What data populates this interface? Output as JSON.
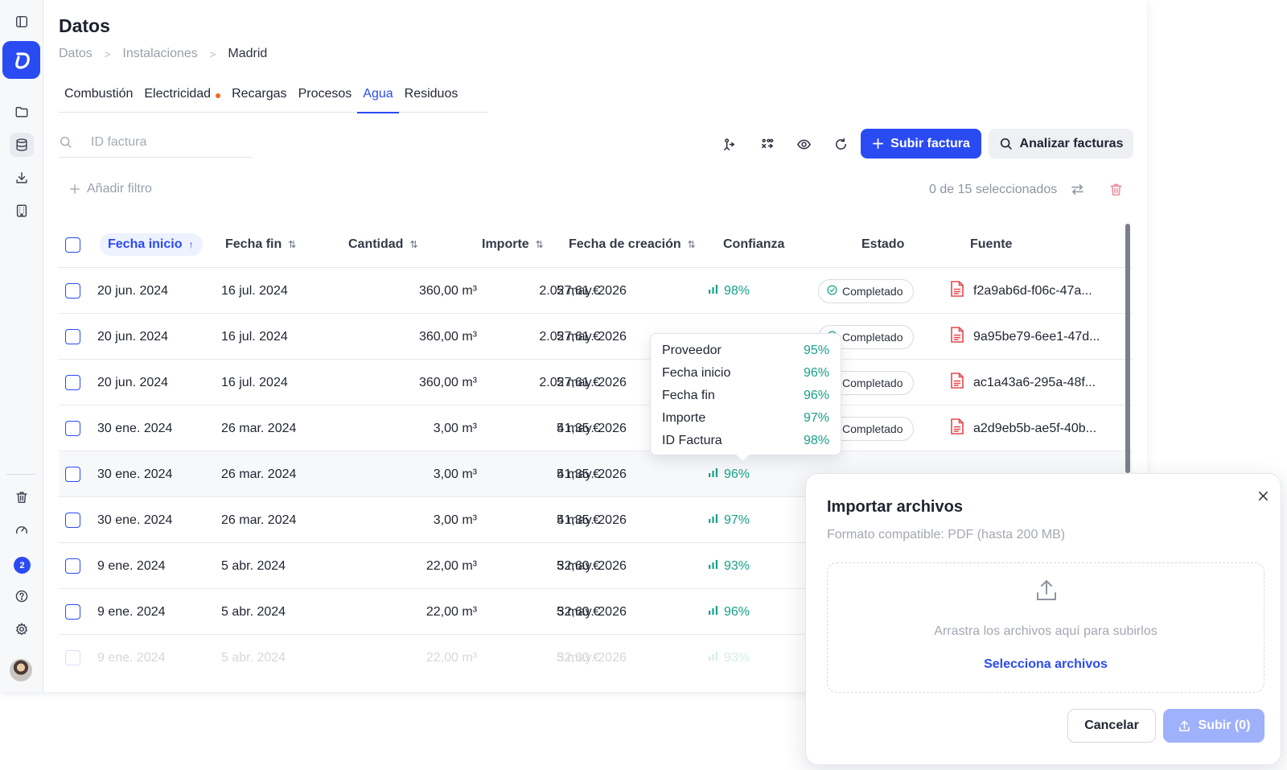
{
  "header": {
    "title": "Datos",
    "breadcrumb": [
      "Datos",
      "Instalaciones",
      "Madrid"
    ]
  },
  "tabs": [
    {
      "label": "Combustión",
      "active": false,
      "dot": false
    },
    {
      "label": "Electricidad",
      "active": false,
      "dot": true
    },
    {
      "label": "Recargas",
      "active": false,
      "dot": false
    },
    {
      "label": "Procesos",
      "active": false,
      "dot": false
    },
    {
      "label": "Agua",
      "active": true,
      "dot": false
    },
    {
      "label": "Residuos",
      "active": false,
      "dot": false
    }
  ],
  "toolbar": {
    "search_placeholder": "ID factura",
    "upload_label": "Subir factura",
    "analyze_label": "Analizar facturas",
    "add_filter_label": "Añadir filtro",
    "selection_text": "0 de 15 seleccionados"
  },
  "table": {
    "columns": [
      "Fecha inicio",
      "Fecha fin",
      "Cantidad",
      "Importe",
      "Fecha de creación",
      "Confianza",
      "Estado",
      "Fuente"
    ],
    "rows": [
      {
        "start": "20 jun. 2024",
        "end": "16 jul. 2024",
        "qty": "360,00 m³",
        "amount": "2.027,61 €",
        "created": "5 may. 2026",
        "conf": "98%",
        "status": "Completado",
        "source": "f2a9ab6d-f06c-47a..."
      },
      {
        "start": "20 jun. 2024",
        "end": "16 jul. 2024",
        "qty": "360,00 m³",
        "amount": "2.027,61 €",
        "created": "5 may. 2026",
        "conf": "",
        "status": "Completado",
        "source": "9a95be79-6ee1-47d..."
      },
      {
        "start": "20 jun. 2024",
        "end": "16 jul. 2024",
        "qty": "360,00 m³",
        "amount": "2.027,61 €",
        "created": "5 may. 2026",
        "conf": "",
        "status": "Completado",
        "source": "ac1a43a6-295a-48f..."
      },
      {
        "start": "30 ene. 2024",
        "end": "26 mar. 2024",
        "qty": "3,00 m³",
        "amount": "41,35 €",
        "created": "5 may. 2026",
        "conf": "",
        "status": "Completado",
        "source": "a2d9eb5b-ae5f-40b..."
      },
      {
        "start": "30 ene. 2024",
        "end": "26 mar. 2024",
        "qty": "3,00 m³",
        "amount": "41,35 €",
        "created": "5 may. 2026",
        "conf": "96%",
        "status": "",
        "source": ""
      },
      {
        "start": "30 ene. 2024",
        "end": "26 mar. 2024",
        "qty": "3,00 m³",
        "amount": "41,35 €",
        "created": "5 may. 2026",
        "conf": "97%",
        "status": "",
        "source": ""
      },
      {
        "start": "9 ene. 2024",
        "end": "5 abr. 2024",
        "qty": "22,00 m³",
        "amount": "32,60 €",
        "created": "5 may. 2026",
        "conf": "93%",
        "status": "",
        "source": ""
      },
      {
        "start": "9 ene. 2024",
        "end": "5 abr. 2024",
        "qty": "22,00 m³",
        "amount": "32,60 €",
        "created": "5 may. 2026",
        "conf": "96%",
        "status": "",
        "source": ""
      },
      {
        "start": "9 ene. 2024",
        "end": "5 abr. 2024",
        "qty": "22,00 m³",
        "amount": "32,60 €",
        "created": "5 may. 2026",
        "conf": "93%",
        "status": "",
        "source": ""
      }
    ]
  },
  "tooltip": {
    "items": [
      {
        "label": "Proveedor",
        "value": "95%"
      },
      {
        "label": "Fecha inicio",
        "value": "96%"
      },
      {
        "label": "Fecha fin",
        "value": "96%"
      },
      {
        "label": "Importe",
        "value": "97%"
      },
      {
        "label": "ID Factura",
        "value": "98%"
      }
    ]
  },
  "modal": {
    "title": "Importar archivos",
    "subtitle": "Formato compatible: PDF (hasta 200 MB)",
    "drop_text": "Arrastra los archivos aquí para subirlos",
    "select_link": "Selecciona archivos",
    "cancel_label": "Cancelar",
    "upload_label": "Subir (0)"
  },
  "sidebar": {
    "notification_count": "2"
  },
  "colors": {
    "accent": "#2a4bf2",
    "success": "#18a08a",
    "danger": "#e5484d"
  }
}
